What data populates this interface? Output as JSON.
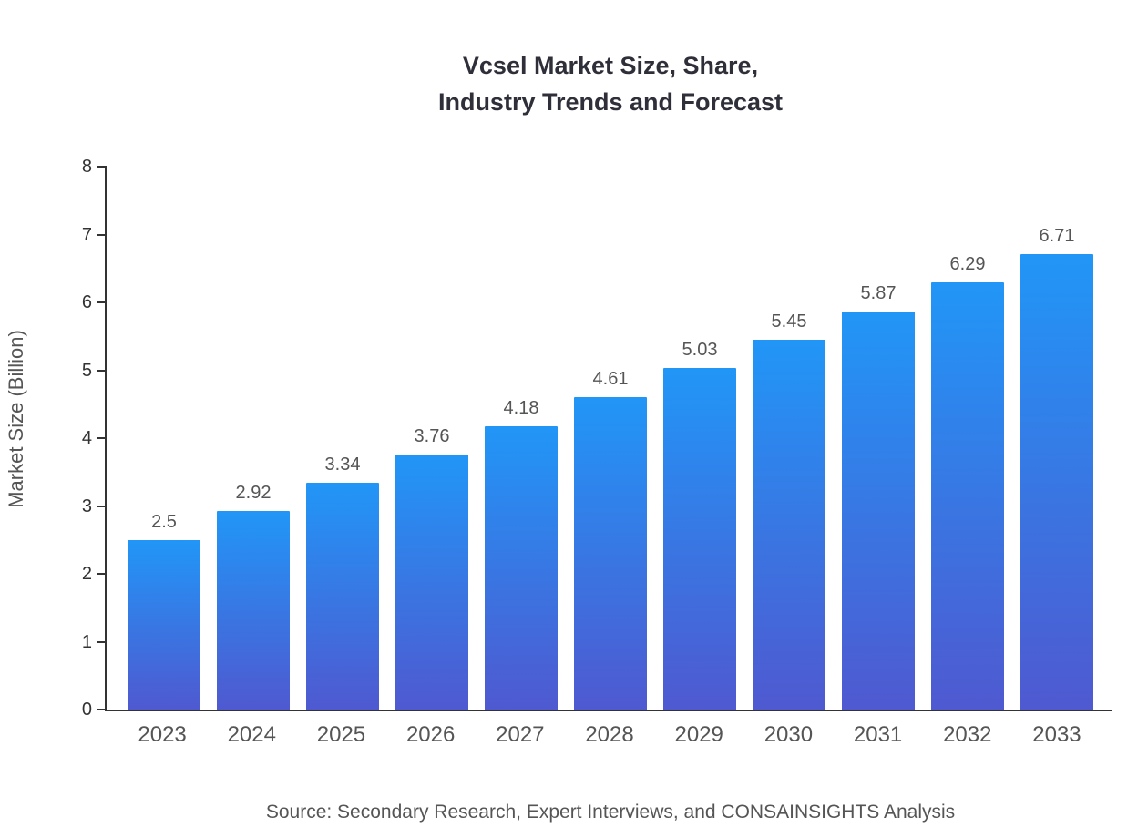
{
  "title": {
    "line1": "Vcsel Market Size, Share,",
    "line2": "Industry Trends and Forecast"
  },
  "source": "Source: Secondary Research, Expert Interviews, and CONSAINSIGHTS Analysis",
  "chart_data": {
    "type": "bar",
    "title": "Vcsel Market Size, Share, Industry Trends and Forecast",
    "categories": [
      "2023",
      "2024",
      "2025",
      "2026",
      "2027",
      "2028",
      "2029",
      "2030",
      "2031",
      "2032",
      "2033"
    ],
    "values": [
      2.5,
      2.92,
      3.34,
      3.76,
      4.18,
      4.61,
      5.03,
      5.45,
      5.87,
      6.29,
      6.71
    ],
    "value_labels": [
      "2.5",
      "2.92",
      "3.34",
      "3.76",
      "4.18",
      "4.61",
      "5.03",
      "5.45",
      "5.87",
      "6.29",
      "6.71"
    ],
    "xlabel": "",
    "ylabel": "Market Size (Billion)",
    "ylim": [
      0,
      8
    ],
    "yticks": [
      0,
      1,
      2,
      3,
      4,
      5,
      6,
      7,
      8
    ],
    "grid": false,
    "legend": false,
    "bar_gradient": {
      "top": "#2196f7",
      "bottom": "#4f59d0"
    },
    "axis_color": "#333333",
    "label_color": "#555555"
  }
}
